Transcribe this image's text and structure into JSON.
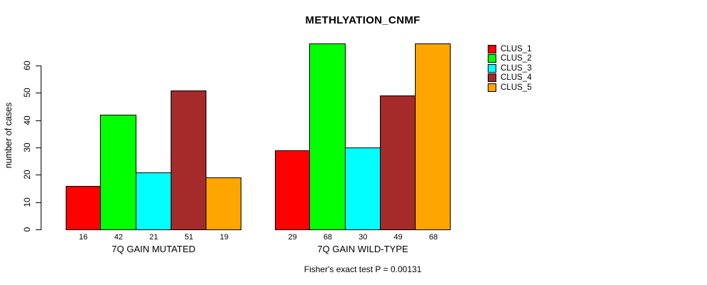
{
  "chart_data": {
    "type": "bar",
    "title": "METHLYATION_CNMF",
    "ylabel": "number of cases",
    "groups": [
      "7Q GAIN MUTATED",
      "7Q GAIN WILD-TYPE"
    ],
    "series": [
      {
        "name": "CLUS_1",
        "color": "#FF0000",
        "values": [
          16,
          29
        ]
      },
      {
        "name": "CLUS_2",
        "color": "#00FF00",
        "values": [
          42,
          68
        ]
      },
      {
        "name": "CLUS_3",
        "color": "#00FFFF",
        "values": [
          21,
          30
        ]
      },
      {
        "name": "CLUS_4",
        "color": "#A52A2A",
        "values": [
          51,
          49
        ]
      },
      {
        "name": "CLUS_5",
        "color": "#FFA500",
        "values": [
          19,
          68
        ]
      }
    ],
    "bar_labels": [
      [
        16,
        42,
        21,
        51,
        19
      ],
      [
        29,
        68,
        30,
        49,
        68
      ]
    ],
    "y_ticks": [
      0,
      10,
      20,
      30,
      40,
      50,
      60
    ],
    "ylim": [
      0,
      68
    ],
    "grid": false,
    "legend_position": "right",
    "annotation": "Fisher's exact test P = 0.00131"
  }
}
